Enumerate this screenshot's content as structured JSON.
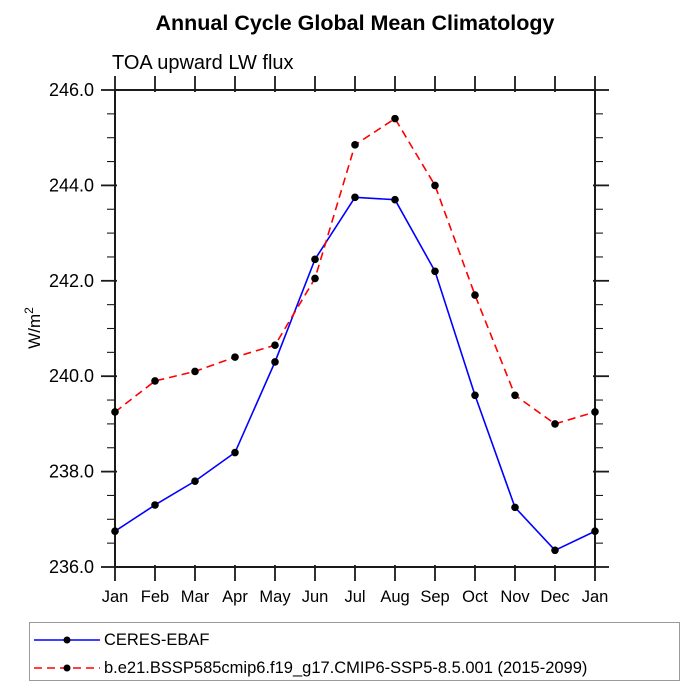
{
  "page": {
    "background": "#ffffff"
  },
  "header": {
    "title": "Annual Cycle Global Mean Climatology",
    "subtitle": "TOA upward LW flux"
  },
  "colors": {
    "axis": "#1a1a1a",
    "text": "#000000",
    "marker": "#000000",
    "series_obs": "#0000ff",
    "series_model": "#ff0000",
    "legend_border": "#9a9a9a"
  },
  "legend": {
    "entries": [
      {
        "label": "CERES-EBAF",
        "color": "#0000ff",
        "style": "solid",
        "marker": "filled-circle"
      },
      {
        "label": "b.e21.BSSP585cmip6.f19_g17.CMIP6-SSP5-8.5.001 (2015-2099)",
        "color": "#ff0000",
        "style": "dashed",
        "marker": "filled-circle"
      }
    ]
  },
  "chart_data": {
    "type": "line",
    "title": "Annual Cycle Global Mean Climatology",
    "subtitle": "TOA upward LW flux",
    "xlabel": "",
    "ylabel_base": "W/m",
    "ylabel_sup": "2",
    "x_tick_labels": [
      "Jan",
      "Feb",
      "Mar",
      "Apr",
      "May",
      "Jun",
      "Jul",
      "Aug",
      "Sep",
      "Oct",
      "Nov",
      "Dec",
      "Jan"
    ],
    "ylim": [
      236.0,
      246.0
    ],
    "y_major_ticks": [
      236.0,
      238.0,
      240.0,
      242.0,
      244.0,
      246.0
    ],
    "y_tick_labels": [
      "236.0",
      "238.0",
      "240.0",
      "242.0",
      "244.0",
      "246.0"
    ],
    "y_minor_step": 0.5,
    "grid": false,
    "legend_position": "bottom-left-box",
    "series": [
      {
        "name": "CERES-EBAF",
        "color": "#0000ff",
        "style": "solid",
        "marker": "filled-circle",
        "values": [
          236.75,
          237.3,
          237.8,
          238.4,
          240.3,
          242.45,
          243.75,
          243.7,
          242.2,
          239.6,
          237.25,
          236.35,
          236.75
        ]
      },
      {
        "name": "b.e21.BSSP585cmip6.f19_g17.CMIP6-SSP5-8.5.001 (2015-2099)",
        "color": "#ff0000",
        "style": "dashed",
        "marker": "filled-circle",
        "values": [
          239.25,
          239.9,
          240.1,
          240.4,
          240.65,
          242.05,
          244.85,
          245.4,
          244.0,
          241.7,
          239.6,
          239.0,
          239.25
        ]
      }
    ]
  }
}
